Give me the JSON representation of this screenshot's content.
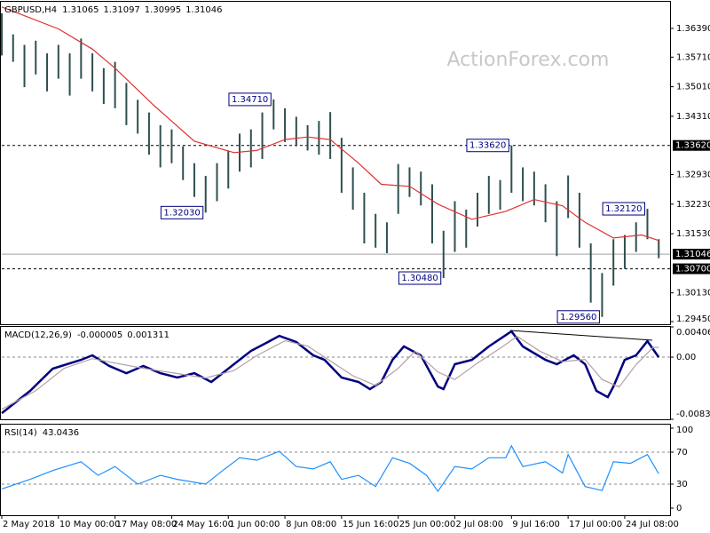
{
  "chart_data": [
    {
      "type": "ohlc",
      "title": "GBPUSD,H4",
      "readings": [
        1.31065,
        1.31097,
        1.30995,
        1.31046
      ],
      "watermark": "ActionForex.com",
      "color": "#2f4f4f",
      "x": [
        0,
        2,
        4,
        6,
        8,
        10,
        12,
        14,
        16,
        18,
        20,
        22,
        24,
        26,
        28,
        30,
        32,
        34,
        36,
        38,
        40,
        42,
        44,
        46,
        48,
        50,
        52,
        54,
        56,
        58,
        60,
        62,
        64,
        66,
        68,
        70,
        72,
        74,
        76,
        78,
        80,
        82,
        84,
        86,
        88,
        90,
        92,
        94,
        96,
        98,
        100,
        102,
        104,
        106,
        108,
        110,
        112,
        114,
        116
      ],
      "high": [
        1.3675,
        1.3625,
        1.36,
        1.361,
        1.358,
        1.36,
        1.358,
        1.3615,
        1.358,
        1.3545,
        1.356,
        1.351,
        1.347,
        1.344,
        1.341,
        1.34,
        1.336,
        1.332,
        1.329,
        1.332,
        1.335,
        1.339,
        1.34,
        1.344,
        1.3471,
        1.345,
        1.343,
        1.341,
        1.342,
        1.3441,
        1.338,
        1.331,
        1.325,
        1.32,
        1.318,
        1.3318,
        1.331,
        1.33,
        1.327,
        1.316,
        1.323,
        1.321,
        1.325,
        1.329,
        1.328,
        1.3362,
        1.331,
        1.33,
        1.327,
        1.323,
        1.3291,
        1.325,
        1.313,
        1.306,
        1.314,
        1.315,
        1.318,
        1.3212,
        1.314
      ],
      "low": [
        1.3575,
        1.356,
        1.35,
        1.353,
        1.349,
        1.352,
        1.348,
        1.352,
        1.349,
        1.346,
        1.345,
        1.341,
        1.339,
        1.334,
        1.331,
        1.332,
        1.328,
        1.324,
        1.3203,
        1.323,
        1.326,
        1.33,
        1.331,
        1.333,
        1.34,
        1.337,
        1.336,
        1.335,
        1.334,
        1.333,
        1.325,
        1.321,
        1.313,
        1.312,
        1.3107,
        1.32,
        1.324,
        1.322,
        1.313,
        1.3048,
        1.311,
        1.312,
        1.317,
        1.32,
        1.321,
        1.325,
        1.323,
        1.322,
        1.318,
        1.31,
        1.319,
        1.312,
        1.299,
        1.2956,
        1.303,
        1.307,
        1.311,
        1.314,
        1.3095
      ],
      "ma": {
        "color": "#e03030",
        "x": [
          0,
          10,
          16,
          20,
          27,
          34,
          41,
          45,
          50,
          54,
          58,
          63,
          67,
          72,
          77,
          83,
          89,
          94,
          99,
          103,
          108,
          113,
          116
        ],
        "values": [
          1.369,
          1.3638,
          1.359,
          1.3545,
          1.3455,
          1.3372,
          1.3345,
          1.335,
          1.3376,
          1.3382,
          1.3376,
          1.332,
          1.327,
          1.3265,
          1.3223,
          1.3187,
          1.3206,
          1.3234,
          1.3219,
          1.318,
          1.3143,
          1.315,
          1.3137
        ]
      },
      "xlim": [
        0,
        118
      ],
      "ylim": [
        1.29387,
        1.37021
      ],
      "yticks": [
        {
          "value": 1.3639,
          "label": "1.36390"
        },
        {
          "value": 1.3571,
          "label": "1.35710"
        },
        {
          "value": 1.3501,
          "label": "1.35010"
        },
        {
          "value": 1.3431,
          "label": "1.34310"
        },
        {
          "value": 1.3293,
          "label": "1.32930"
        },
        {
          "value": 1.3223,
          "label": "1.32230"
        },
        {
          "value": 1.3153,
          "label": "1.31530"
        },
        {
          "value": 1.3013,
          "label": "1.30130"
        },
        {
          "value": 1.2945,
          "label": "1.29450"
        }
      ],
      "levels": [
        {
          "value": 1.3362,
          "label": "1.33620"
        },
        {
          "value": 1.307,
          "label": "1.30700"
        }
      ],
      "current": {
        "value": 1.31046,
        "label": "1.31046"
      },
      "annotations": [
        {
          "x": 48,
          "value": 1.3471,
          "label": "1.34710"
        },
        {
          "x": 36,
          "value": 1.3203,
          "label": "1.32030"
        },
        {
          "x": 90,
          "value": 1.3362,
          "label": "1.33620"
        },
        {
          "x": 78,
          "value": 1.3048,
          "label": "1.30480"
        },
        {
          "x": 106,
          "value": 1.2956,
          "label": "1.29560"
        },
        {
          "x": 114,
          "value": 1.3212,
          "label": "1.32120"
        }
      ]
    },
    {
      "type": "line",
      "title": "MACD(12,26,9)",
      "readings": [
        -5e-06,
        0.001311
      ],
      "xlim": [
        0,
        118
      ],
      "ylim": [
        -0.008346,
        0.00406
      ],
      "yticks": [
        0.00406,
        {
          "value": 0,
          "label": "0.00"
        },
        -0.008346
      ],
      "levels": [
        0
      ],
      "series": [
        {
          "color": "#000080",
          "x": [
            0,
            5,
            9,
            14,
            16,
            19,
            22,
            25,
            28,
            31,
            34,
            37,
            41,
            44,
            47,
            49,
            52,
            55,
            57,
            60,
            63,
            65,
            67,
            69,
            71,
            74,
            77,
            78,
            80,
            83,
            86,
            90,
            92,
            96,
            98,
            101,
            103,
            105,
            107,
            108,
            110,
            112,
            114,
            116
          ],
          "values": [
            -0.00752,
            -0.00453,
            -0.00155,
            -0.00036,
            0.00024,
            -0.00119,
            -0.00215,
            -0.00119,
            -0.00215,
            -0.00274,
            -0.00215,
            -0.00334,
            -0.00095,
            0.00084,
            0.00203,
            0.00286,
            0.00203,
            0.00024,
            -0.00036,
            -0.00274,
            -0.00334,
            -0.00429,
            -0.00334,
            -0.00036,
            0.00143,
            0.00024,
            -0.00394,
            -0.00429,
            -0.00095,
            -0.00036,
            0.00143,
            0.00346,
            0.00143,
            -0.00036,
            -0.00095,
            0.00024,
            -0.00095,
            -0.00453,
            -0.00537,
            -0.00394,
            -0.00036,
            0.00024,
            0.00215,
            -1e-05
          ]
        },
        {
          "color": "#b4a0a0",
          "x": [
            0,
            6,
            11,
            16,
            20,
            25,
            31,
            36,
            41,
            45,
            50,
            54,
            58,
            62,
            66,
            70,
            73,
            77,
            80,
            84,
            88,
            91,
            95,
            99,
            103,
            106,
            109,
            112,
            115,
            116
          ],
          "values": [
            -0.007,
            -0.0045,
            -0.0015,
            -0.0002,
            -0.0008,
            -0.0015,
            -0.0022,
            -0.0028,
            -0.0018,
            0.0002,
            0.0022,
            0.0015,
            -0.0005,
            -0.0025,
            -0.0038,
            -0.0015,
            0.0008,
            -0.002,
            -0.003,
            -0.0008,
            0.0012,
            0.0028,
            0.0008,
            -0.0006,
            -0.0003,
            -0.003,
            -0.004,
            -0.001,
            0.0013,
            0.0013
          ]
        }
      ]
    },
    {
      "type": "line",
      "title": "RSI(14)",
      "readings": [
        43.0436
      ],
      "xlim": [
        0,
        118
      ],
      "ylim": [
        -8.9,
        104.4
      ],
      "yticks": [
        100,
        70,
        30,
        0
      ],
      "levels": [
        30,
        70
      ],
      "series": [
        {
          "color": "#1e90ff",
          "x": [
            0,
            5,
            9,
            14,
            17,
            20,
            24,
            28,
            31,
            36,
            39,
            42,
            45,
            49,
            52,
            55,
            58,
            60,
            63,
            66,
            69,
            72,
            75,
            77,
            80,
            83,
            86,
            89,
            90,
            92,
            96,
            99,
            100,
            103,
            106,
            108,
            111,
            114,
            116
          ],
          "values": [
            24,
            36,
            47,
            58,
            41,
            52,
            30,
            41,
            36,
            30,
            47,
            63,
            60,
            71,
            52,
            49,
            58,
            36,
            41,
            27,
            63,
            56,
            41,
            21,
            52,
            49,
            63,
            63,
            78,
            52,
            58,
            44,
            67,
            27,
            22,
            58,
            56,
            67,
            43
          ]
        }
      ],
      "xticks": [
        {
          "value": 0,
          "label": "2 May 2018"
        },
        {
          "value": 10,
          "label": "10 May 00:00"
        },
        {
          "value": 20,
          "label": "17 May 08:00"
        },
        {
          "value": 30,
          "label": "24 May 16:00"
        },
        {
          "value": 40,
          "label": "1 Jun 00:00"
        },
        {
          "value": 50,
          "label": "8 Jun 08:00"
        },
        {
          "value": 60,
          "label": "15 Jun 16:00"
        },
        {
          "value": 70,
          "label": "25 Jun 00:00"
        },
        {
          "value": 80,
          "label": "2 Jul 08:00"
        },
        {
          "value": 90,
          "label": "9 Jul 16:00"
        },
        {
          "value": 100,
          "label": "17 Jul 00:00"
        },
        {
          "value": 110,
          "label": "24 Jul 08:00"
        }
      ]
    }
  ]
}
